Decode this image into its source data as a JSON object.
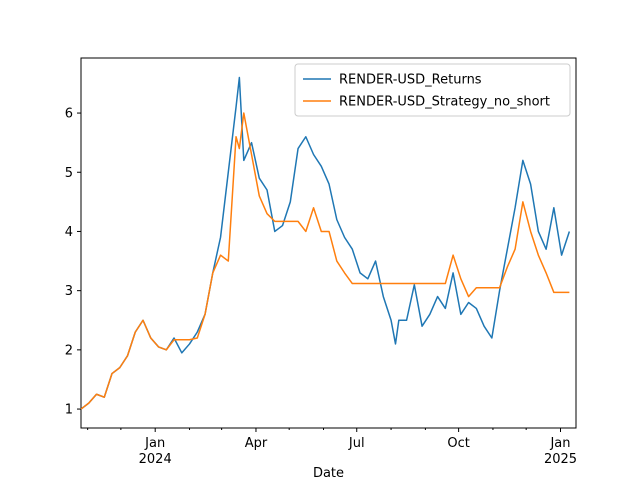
{
  "chart_data": {
    "type": "line",
    "xlabel": "Date",
    "x": [
      "2023-10-26",
      "2023-11-02",
      "2023-11-09",
      "2023-11-16",
      "2023-11-23",
      "2023-11-30",
      "2023-12-07",
      "2023-12-14",
      "2023-12-21",
      "2023-12-28",
      "2024-01-04",
      "2024-01-11",
      "2024-01-18",
      "2024-01-25",
      "2024-02-01",
      "2024-02-08",
      "2024-02-15",
      "2024-02-22",
      "2024-02-29",
      "2024-03-07",
      "2024-03-14",
      "2024-03-17",
      "2024-03-21",
      "2024-03-28",
      "2024-04-04",
      "2024-04-11",
      "2024-04-18",
      "2024-04-25",
      "2024-05-02",
      "2024-05-09",
      "2024-05-16",
      "2024-05-23",
      "2024-05-30",
      "2024-06-06",
      "2024-06-13",
      "2024-06-20",
      "2024-06-27",
      "2024-07-04",
      "2024-07-11",
      "2024-07-18",
      "2024-07-25",
      "2024-08-01",
      "2024-08-05",
      "2024-08-08",
      "2024-08-15",
      "2024-08-22",
      "2024-08-29",
      "2024-09-05",
      "2024-09-12",
      "2024-09-19",
      "2024-09-26",
      "2024-10-03",
      "2024-10-10",
      "2024-10-17",
      "2024-10-24",
      "2024-10-31",
      "2024-11-07",
      "2024-11-14",
      "2024-11-21",
      "2024-11-28",
      "2024-12-05",
      "2024-12-12",
      "2024-12-19",
      "2024-12-26",
      "2025-01-02",
      "2025-01-09"
    ],
    "series": [
      {
        "name": "RENDER-USD_Returns",
        "color": "#1f77b4",
        "values": [
          1.0,
          1.1,
          1.25,
          1.2,
          1.6,
          1.7,
          1.9,
          2.3,
          2.5,
          2.2,
          2.05,
          2.0,
          2.2,
          1.95,
          2.1,
          2.3,
          2.6,
          3.3,
          3.9,
          5.0,
          6.1,
          6.6,
          5.2,
          5.5,
          4.9,
          4.7,
          4.0,
          4.1,
          4.5,
          5.4,
          5.6,
          5.3,
          5.1,
          4.8,
          4.2,
          3.9,
          3.7,
          3.3,
          3.2,
          3.5,
          2.9,
          2.5,
          2.1,
          2.5,
          2.5,
          3.1,
          2.4,
          2.6,
          2.9,
          2.7,
          3.3,
          2.6,
          2.8,
          2.7,
          2.4,
          2.2,
          3.0,
          3.7,
          4.4,
          5.2,
          4.8,
          4.0,
          3.7,
          4.4,
          3.6,
          4.0
        ]
      },
      {
        "name": "RENDER-USD_Strategy_no_short",
        "color": "#ff7f0e",
        "values": [
          1.0,
          1.1,
          1.25,
          1.2,
          1.6,
          1.7,
          1.9,
          2.3,
          2.5,
          2.2,
          2.05,
          2.0,
          2.17,
          2.17,
          2.17,
          2.2,
          2.6,
          3.3,
          3.6,
          3.5,
          5.6,
          5.4,
          6.0,
          5.3,
          4.6,
          4.3,
          4.17,
          4.17,
          4.17,
          4.17,
          4.0,
          4.4,
          4.0,
          4.0,
          3.5,
          3.3,
          3.12,
          3.12,
          3.12,
          3.12,
          3.12,
          3.12,
          3.12,
          3.12,
          3.12,
          3.12,
          3.12,
          3.12,
          3.12,
          3.12,
          3.6,
          3.2,
          2.9,
          3.05,
          3.05,
          3.05,
          3.05,
          3.4,
          3.7,
          4.5,
          4.0,
          3.6,
          3.3,
          2.97,
          2.97,
          2.97
        ]
      }
    ],
    "xlim": [
      "2023-10-26",
      "2025-01-15"
    ],
    "xticks": [
      {
        "value": "2024-01-01",
        "label": "Jan\n2024"
      },
      {
        "value": "2024-04-01",
        "label": "Apr"
      },
      {
        "value": "2024-07-01",
        "label": "Jul"
      },
      {
        "value": "2024-10-01",
        "label": "Oct"
      },
      {
        "value": "2025-01-01",
        "label": "Jan\n2025"
      }
    ],
    "xminorticks": [
      "2023-11-01",
      "2023-12-01",
      "2024-02-01",
      "2024-03-01",
      "2024-05-01",
      "2024-06-01",
      "2024-08-01",
      "2024-09-01",
      "2024-11-01",
      "2024-12-01"
    ],
    "ylim": [
      0.68,
      6.93
    ],
    "yticks": [
      1,
      2,
      3,
      4,
      5,
      6
    ],
    "grid": false,
    "legend": "upper right"
  }
}
